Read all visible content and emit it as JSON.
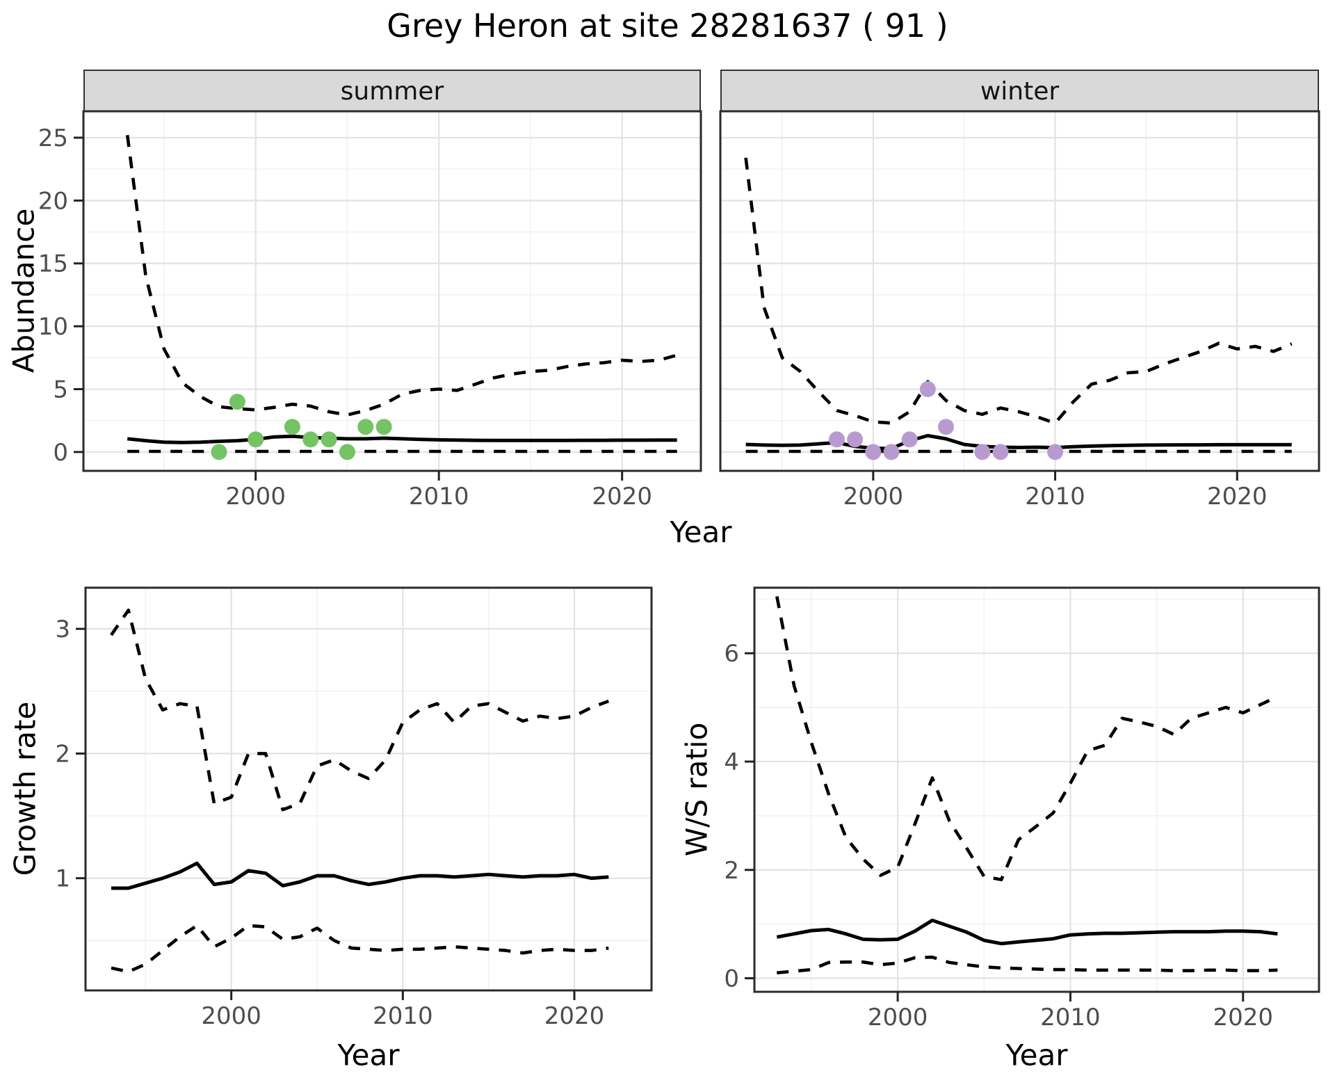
{
  "title": "Grey Heron at site 28281637 ( 91 )",
  "labels": {
    "x_axis": "Year",
    "facet_summer": "summer",
    "facet_winter": "winter",
    "y_abundance": "Abundance",
    "y_growth": "Growth rate",
    "y_ws": "W/S ratio"
  },
  "colors": {
    "summer_point": "#74c365",
    "winter_point": "#b79bd0",
    "strip_bg": "#d9d9d9",
    "line": "#000000",
    "grid_major": "#e3e3e3",
    "grid_minor": "#f1f1f1",
    "axis_text": "#4d4d4d",
    "panel_border": "#2b2b2b"
  },
  "chart_data": [
    {
      "id": "abundance-summer",
      "type": "line",
      "facet": "summer",
      "title": "Grey Heron at site 28281637 ( 91 )",
      "xlabel": "Year",
      "ylabel": "Abundance",
      "xlim": [
        1990.6,
        2024.3
      ],
      "ylim": [
        -1.5,
        27.1
      ],
      "x_ticks": [
        2000,
        2010,
        2020
      ],
      "x_minor": [
        1995,
        2005,
        2015
      ],
      "y_ticks": [
        0,
        5,
        10,
        15,
        20,
        25
      ],
      "y_minor": [
        2.5,
        7.5,
        12.5,
        17.5,
        22.5
      ],
      "grid": true,
      "legend": "none",
      "years": [
        1993,
        1994,
        1995,
        1996,
        1997,
        1998,
        1999,
        2000,
        2001,
        2002,
        2003,
        2004,
        2005,
        2006,
        2007,
        2008,
        2009,
        2010,
        2011,
        2012,
        2013,
        2014,
        2015,
        2016,
        2017,
        2018,
        2019,
        2020,
        2021,
        2022,
        2023
      ],
      "series": [
        {
          "name": "upper_95ci",
          "style": "dashed",
          "values": [
            25.2,
            14,
            8.2,
            5.5,
            4.4,
            3.6,
            3.45,
            3.35,
            3.55,
            3.8,
            3.65,
            3.2,
            2.95,
            3.3,
            3.8,
            4.6,
            4.9,
            5.0,
            4.9,
            5.4,
            5.9,
            6.2,
            6.4,
            6.5,
            6.8,
            7.0,
            7.1,
            7.3,
            7.2,
            7.3,
            7.7
          ]
        },
        {
          "name": "median",
          "style": "solid",
          "values": [
            1.05,
            0.9,
            0.78,
            0.75,
            0.78,
            0.85,
            0.9,
            1.0,
            1.2,
            1.25,
            1.15,
            1.1,
            1.05,
            1.05,
            1.1,
            1.05,
            1.0,
            0.97,
            0.95,
            0.93,
            0.92,
            0.92,
            0.92,
            0.92,
            0.92,
            0.93,
            0.93,
            0.94,
            0.94,
            0.95,
            0.95
          ]
        },
        {
          "name": "lower_95ci",
          "style": "dashed",
          "values": [
            0.05,
            0.05,
            0.05,
            0.05,
            0.05,
            0.05,
            0.05,
            0.05,
            0.05,
            0.05,
            0.05,
            0.05,
            0.05,
            0.05,
            0.05,
            0.05,
            0.05,
            0.05,
            0.05,
            0.05,
            0.05,
            0.05,
            0.05,
            0.05,
            0.05,
            0.05,
            0.05,
            0.05,
            0.05,
            0.05,
            0.05
          ]
        }
      ],
      "points": {
        "name": "observed-counts-summer",
        "color": "#74c365",
        "data": [
          [
            1998,
            0
          ],
          [
            1999,
            4
          ],
          [
            2000,
            1
          ],
          [
            2002,
            2
          ],
          [
            2003,
            1
          ],
          [
            2004,
            1
          ],
          [
            2005,
            0
          ],
          [
            2006,
            2
          ],
          [
            2007,
            2
          ]
        ]
      }
    },
    {
      "id": "abundance-winter",
      "type": "line",
      "facet": "winter",
      "xlabel": "Year",
      "ylabel": "Abundance",
      "xlim": [
        1991.6,
        2024.5
      ],
      "ylim": [
        -1.5,
        27.1
      ],
      "x_ticks": [
        2000,
        2010,
        2020
      ],
      "x_minor": [
        1995,
        2005,
        2015
      ],
      "y_ticks": [
        0,
        5,
        10,
        15,
        20,
        25
      ],
      "y_minor": [
        2.5,
        7.5,
        12.5,
        17.5,
        22.5
      ],
      "grid": true,
      "legend": "none",
      "years": [
        1993,
        1994,
        1995,
        1996,
        1997,
        1998,
        1999,
        2000,
        2001,
        2002,
        2003,
        2004,
        2005,
        2006,
        2007,
        2008,
        2009,
        2010,
        2011,
        2012,
        2013,
        2014,
        2015,
        2016,
        2017,
        2018,
        2019,
        2020,
        2021,
        2022,
        2023
      ],
      "series": [
        {
          "name": "upper_95ci",
          "style": "dashed",
          "values": [
            23.4,
            11.5,
            7.5,
            6.4,
            4.8,
            3.3,
            2.9,
            2.4,
            2.3,
            3.2,
            5.6,
            4.1,
            3.3,
            3.0,
            3.5,
            3.2,
            2.8,
            2.3,
            4.0,
            5.4,
            5.7,
            6.3,
            6.4,
            7.0,
            7.5,
            8.0,
            8.65,
            8.2,
            8.4,
            8.0,
            8.6
          ]
        },
        {
          "name": "median",
          "style": "solid",
          "values": [
            0.6,
            0.55,
            0.53,
            0.55,
            0.65,
            0.75,
            0.45,
            0.3,
            0.27,
            0.9,
            1.3,
            1.05,
            0.6,
            0.44,
            0.38,
            0.36,
            0.38,
            0.35,
            0.42,
            0.47,
            0.5,
            0.53,
            0.55,
            0.56,
            0.57,
            0.57,
            0.58,
            0.58,
            0.58,
            0.58,
            0.58
          ]
        },
        {
          "name": "lower_95ci",
          "style": "dashed",
          "values": [
            0.05,
            0.05,
            0.05,
            0.05,
            0.05,
            0.05,
            0.05,
            0.05,
            0.05,
            0.05,
            0.05,
            0.05,
            0.05,
            0.05,
            0.05,
            0.05,
            0.05,
            0.05,
            0.05,
            0.05,
            0.05,
            0.05,
            0.05,
            0.05,
            0.05,
            0.05,
            0.05,
            0.05,
            0.05,
            0.05,
            0.05
          ]
        }
      ],
      "points": {
        "name": "observed-counts-winter",
        "color": "#b79bd0",
        "data": [
          [
            1998,
            1
          ],
          [
            1999,
            1
          ],
          [
            2000,
            0
          ],
          [
            2001,
            0
          ],
          [
            2002,
            1
          ],
          [
            2003,
            5
          ],
          [
            2004,
            2
          ],
          [
            2006,
            0
          ],
          [
            2007,
            0
          ],
          [
            2010,
            0
          ]
        ]
      }
    },
    {
      "id": "growth-rate",
      "type": "line",
      "xlabel": "Year",
      "ylabel": "Growth rate",
      "xlim": [
        1991.5,
        2024.5
      ],
      "ylim": [
        0.1,
        3.33
      ],
      "x_ticks": [
        2000,
        2010,
        2020
      ],
      "x_minor": [
        1995,
        2005,
        2015
      ],
      "y_ticks": [
        1,
        2,
        3
      ],
      "y_minor": [
        0.5,
        1.5,
        2.5
      ],
      "grid": true,
      "legend": "none",
      "years": [
        1993,
        1994,
        1995,
        1996,
        1997,
        1998,
        1999,
        2000,
        2001,
        2002,
        2003,
        2004,
        2005,
        2006,
        2007,
        2008,
        2009,
        2010,
        2011,
        2012,
        2013,
        2014,
        2015,
        2016,
        2017,
        2018,
        2019,
        2020,
        2021,
        2022
      ],
      "series": [
        {
          "name": "upper_95ci",
          "style": "dashed",
          "values": [
            2.95,
            3.15,
            2.6,
            2.35,
            2.4,
            2.38,
            1.6,
            1.65,
            2.0,
            2.0,
            1.55,
            1.6,
            1.9,
            1.95,
            1.86,
            1.8,
            1.95,
            2.25,
            2.35,
            2.4,
            2.25,
            2.38,
            2.4,
            2.33,
            2.26,
            2.3,
            2.28,
            2.3,
            2.37,
            2.42
          ]
        },
        {
          "name": "median",
          "style": "solid",
          "values": [
            0.92,
            0.92,
            0.96,
            1.0,
            1.05,
            1.12,
            0.95,
            0.97,
            1.06,
            1.04,
            0.94,
            0.97,
            1.02,
            1.02,
            0.98,
            0.95,
            0.97,
            1.0,
            1.02,
            1.02,
            1.01,
            1.02,
            1.03,
            1.02,
            1.01,
            1.02,
            1.02,
            1.03,
            1.0,
            1.01
          ]
        },
        {
          "name": "lower_95ci",
          "style": "dashed",
          "values": [
            0.28,
            0.25,
            0.31,
            0.42,
            0.53,
            0.62,
            0.45,
            0.52,
            0.62,
            0.61,
            0.51,
            0.53,
            0.6,
            0.5,
            0.44,
            0.43,
            0.42,
            0.43,
            0.43,
            0.44,
            0.45,
            0.44,
            0.43,
            0.42,
            0.4,
            0.42,
            0.43,
            0.42,
            0.42,
            0.44
          ]
        }
      ]
    },
    {
      "id": "ws-ratio",
      "type": "line",
      "xlabel": "Year",
      "ylabel": "W/S ratio",
      "xlim": [
        1991.7,
        2024.4
      ],
      "ylim": [
        -0.25,
        7.21
      ],
      "x_ticks": [
        2000,
        2010,
        2020
      ],
      "x_minor": [
        1995,
        2005,
        2015
      ],
      "y_ticks": [
        0,
        2,
        4,
        6
      ],
      "y_minor": [
        1,
        3,
        5,
        7
      ],
      "grid": true,
      "legend": "none",
      "years": [
        1993,
        1994,
        1995,
        1996,
        1997,
        1998,
        1999,
        2000,
        2001,
        2002,
        2003,
        2004,
        2005,
        2006,
        2007,
        2008,
        2009,
        2010,
        2011,
        2012,
        2013,
        2014,
        2015,
        2016,
        2017,
        2018,
        2019,
        2020,
        2021,
        2022
      ],
      "series": [
        {
          "name": "upper_95ci",
          "style": "dashed",
          "values": [
            7.05,
            5.4,
            4.35,
            3.4,
            2.6,
            2.2,
            1.9,
            2.05,
            2.85,
            3.7,
            2.9,
            2.4,
            1.88,
            1.82,
            2.56,
            2.8,
            3.05,
            3.6,
            4.2,
            4.3,
            4.8,
            4.73,
            4.65,
            4.5,
            4.8,
            4.9,
            5.0,
            4.9,
            5.05,
            5.2
          ]
        },
        {
          "name": "median",
          "style": "solid",
          "values": [
            0.76,
            0.82,
            0.88,
            0.9,
            0.82,
            0.72,
            0.71,
            0.72,
            0.87,
            1.07,
            0.96,
            0.85,
            0.7,
            0.64,
            0.67,
            0.7,
            0.73,
            0.8,
            0.82,
            0.83,
            0.83,
            0.84,
            0.85,
            0.86,
            0.86,
            0.86,
            0.87,
            0.87,
            0.86,
            0.82
          ]
        },
        {
          "name": "lower_95ci",
          "style": "dashed",
          "values": [
            0.1,
            0.13,
            0.16,
            0.29,
            0.3,
            0.3,
            0.25,
            0.28,
            0.38,
            0.39,
            0.29,
            0.25,
            0.21,
            0.19,
            0.18,
            0.17,
            0.16,
            0.16,
            0.15,
            0.15,
            0.15,
            0.15,
            0.15,
            0.14,
            0.14,
            0.15,
            0.15,
            0.14,
            0.14,
            0.15
          ]
        }
      ]
    }
  ]
}
